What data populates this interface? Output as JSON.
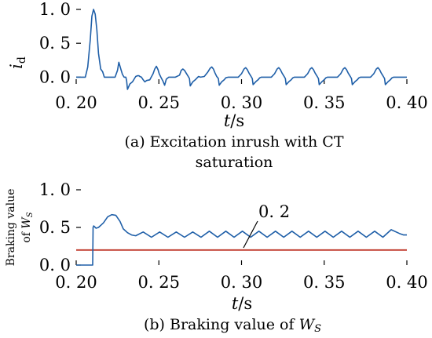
{
  "chart_data": [
    {
      "type": "line",
      "panel": "a",
      "title": "(a) Excitation inrush with CT saturation",
      "title_lines": [
        "(a) Excitation inrush with CT",
        "saturation"
      ],
      "xlabel": "t/s",
      "xlabel_var": "t",
      "xlabel_unit": "/s",
      "ylabel": "id",
      "ylabel_var": "i",
      "ylabel_sub": "d",
      "xlim": [
        0.2,
        0.4
      ],
      "ylim": [
        -0.1,
        1.0
      ],
      "xticks": [
        0.2,
        0.25,
        0.3,
        0.35,
        0.4
      ],
      "xtick_labels": [
        "0. 20",
        "0. 25",
        "0. 30",
        "0. 35",
        "0. 40"
      ],
      "yticks": [
        0.0,
        0.5,
        1.0
      ],
      "ytick_labels": [
        "0. 0",
        "0. 5",
        "1. 0"
      ],
      "grid": false,
      "color": "#1f5fa8",
      "series": [
        {
          "x": [
            0.2,
            0.2055,
            0.207,
            0.2085,
            0.2095,
            0.2105,
            0.2115,
            0.2125,
            0.2135,
            0.2148,
            0.216,
            0.217,
            0.219,
            0.221,
            0.222,
            0.2235,
            0.225,
            0.2258,
            0.227,
            0.228,
            0.229,
            0.23,
            0.2305,
            0.231,
            0.2325,
            0.234,
            0.235,
            0.236,
            0.237,
            0.238,
            0.2385,
            0.2395,
            0.2405,
            0.2415,
            0.2425,
            0.2445,
            0.2465,
            0.2475,
            0.2485,
            0.2495,
            0.2502,
            0.2512,
            0.2525,
            0.2535,
            0.2545,
            0.256,
            0.2575,
            0.26,
            0.2625,
            0.2635,
            0.2645,
            0.2655,
            0.2665,
            0.2675,
            0.2685,
            0.269,
            0.2705,
            0.272,
            0.2728,
            0.274,
            0.2752,
            0.2775,
            0.2795,
            0.281,
            0.282,
            0.283,
            0.284,
            0.285,
            0.286,
            0.2865,
            0.288,
            0.2895,
            0.2905,
            0.292,
            0.294,
            0.298,
            0.3,
            0.3015,
            0.3025,
            0.3035,
            0.3045,
            0.3055,
            0.3065,
            0.307,
            0.3085,
            0.31,
            0.311,
            0.312,
            0.3145,
            0.318,
            0.32,
            0.3215,
            0.3225,
            0.3235,
            0.3245,
            0.3255,
            0.3265,
            0.327,
            0.3285,
            0.33,
            0.331,
            0.332,
            0.3345,
            0.338,
            0.34,
            0.3415,
            0.3425,
            0.3435,
            0.3445,
            0.3455,
            0.3465,
            0.347,
            0.3485,
            0.35,
            0.351,
            0.352,
            0.3545,
            0.358,
            0.36,
            0.3615,
            0.3625,
            0.3635,
            0.3645,
            0.3655,
            0.3665,
            0.367,
            0.3685,
            0.37,
            0.371,
            0.372,
            0.3745,
            0.378,
            0.38,
            0.3815,
            0.3825,
            0.3835,
            0.3845,
            0.3855,
            0.3865,
            0.387,
            0.3885,
            0.39,
            0.391,
            0.392,
            0.3945,
            0.3975,
            0.3995,
            0.4
          ],
          "y": [
            0.0,
            0.0,
            0.15,
            0.55,
            0.9,
            1.0,
            0.93,
            0.7,
            0.35,
            0.12,
            0.08,
            0.0,
            0.0,
            0.0,
            0.0,
            0.0,
            0.1,
            0.22,
            0.12,
            0.04,
            0.0,
            0.0,
            -0.05,
            -0.18,
            -0.1,
            -0.07,
            -0.03,
            0.01,
            0.02,
            0.02,
            0.01,
            0.0,
            -0.04,
            -0.07,
            -0.05,
            -0.04,
            0.05,
            0.12,
            0.16,
            0.11,
            0.05,
            0.0,
            -0.06,
            -0.12,
            -0.03,
            0.0,
            0.0,
            0.0,
            0.03,
            0.1,
            0.12,
            0.1,
            0.06,
            0.02,
            -0.02,
            -0.13,
            -0.07,
            -0.04,
            -0.02,
            0.01,
            0.0,
            0.01,
            0.07,
            0.13,
            0.15,
            0.12,
            0.06,
            0.01,
            -0.02,
            -0.12,
            -0.07,
            -0.04,
            -0.01,
            0.0,
            0.0,
            0.0,
            0.05,
            0.12,
            0.14,
            0.11,
            0.06,
            0.02,
            -0.02,
            -0.11,
            -0.07,
            -0.04,
            -0.01,
            0.0,
            0.0,
            0.0,
            0.05,
            0.12,
            0.14,
            0.11,
            0.06,
            0.02,
            -0.02,
            -0.11,
            -0.07,
            -0.04,
            -0.01,
            0.0,
            0.0,
            0.0,
            0.05,
            0.12,
            0.14,
            0.11,
            0.06,
            0.02,
            -0.02,
            -0.11,
            -0.07,
            -0.04,
            -0.01,
            0.0,
            0.0,
            0.0,
            0.05,
            0.12,
            0.14,
            0.11,
            0.06,
            0.02,
            -0.02,
            -0.11,
            -0.07,
            -0.04,
            -0.01,
            0.0,
            0.0,
            0.0,
            0.05,
            0.12,
            0.14,
            0.11,
            0.06,
            0.02,
            -0.02,
            -0.11,
            -0.07,
            -0.04,
            -0.01,
            0.0,
            0.0,
            0.0,
            0.0,
            0.0
          ]
        }
      ]
    },
    {
      "type": "line",
      "panel": "b",
      "title": "(b) Braking value of Ws",
      "title_prefix": "(b) Braking value of ",
      "title_var": "W",
      "title_sub": "S",
      "xlabel": "t/s",
      "xlabel_var": "t",
      "xlabel_unit": "/s",
      "ylabel": "Braking value of Ws",
      "ylabel_line1": "Braking value",
      "ylabel_line2_prefix": "of ",
      "ylabel_line2_var": "W",
      "ylabel_line2_sub": "S",
      "xlim": [
        0.2,
        0.4
      ],
      "ylim": [
        0.0,
        1.0
      ],
      "xticks": [
        0.2,
        0.25,
        0.3,
        0.35,
        0.4
      ],
      "xtick_labels": [
        "0. 20",
        "0. 25",
        "0. 30",
        "0. 35",
        "0. 40"
      ],
      "yticks": [
        0.0,
        0.5,
        1.0
      ],
      "ytick_labels": [
        "0. 0",
        "0. 5",
        "1. 0"
      ],
      "grid": false,
      "annotation": "0. 2",
      "threshold": 0.2,
      "threshold_color": "#c0392b",
      "color": "#1f5fa8",
      "series": [
        {
          "x": [
            0.2,
            0.21,
            0.2102,
            0.2106,
            0.212,
            0.2135,
            0.2165,
            0.219,
            0.2215,
            0.224,
            0.2265,
            0.2285,
            0.231,
            0.2335,
            0.236,
            0.2405,
            0.2455,
            0.2505,
            0.2555,
            0.2605,
            0.2655,
            0.2705,
            0.2755,
            0.2805,
            0.2855,
            0.2905,
            0.2955,
            0.3005,
            0.3055,
            0.3105,
            0.3155,
            0.3205,
            0.3255,
            0.3305,
            0.3355,
            0.3405,
            0.3455,
            0.3505,
            0.3555,
            0.3605,
            0.3655,
            0.3705,
            0.3755,
            0.3805,
            0.3855,
            0.3905,
            0.3955,
            0.398,
            0.4
          ],
          "y": [
            0.0,
            0.0,
            0.5,
            0.52,
            0.49,
            0.5,
            0.56,
            0.64,
            0.67,
            0.66,
            0.58,
            0.48,
            0.43,
            0.4,
            0.39,
            0.44,
            0.37,
            0.44,
            0.37,
            0.44,
            0.37,
            0.44,
            0.37,
            0.45,
            0.37,
            0.45,
            0.37,
            0.45,
            0.37,
            0.45,
            0.37,
            0.45,
            0.37,
            0.45,
            0.37,
            0.45,
            0.37,
            0.45,
            0.37,
            0.45,
            0.37,
            0.45,
            0.37,
            0.45,
            0.37,
            0.47,
            0.42,
            0.4,
            0.4
          ]
        }
      ]
    }
  ]
}
